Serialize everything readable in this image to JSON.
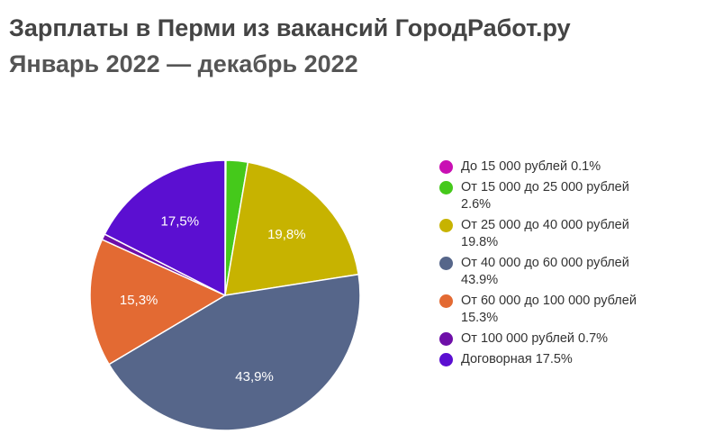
{
  "title": "Зарплаты в Перми из вакансий ГородРабот.ру",
  "subtitle": "Январь 2022 — декабрь 2022",
  "chart_data": {
    "type": "pie",
    "slices": [
      {
        "legend": "До 15 000 рублей 0.1%",
        "value": 0.1,
        "color": "#c90fb3",
        "label": ""
      },
      {
        "legend": "От 15 000 до 25 000 рублей 2.6%",
        "value": 2.6,
        "color": "#45c91b",
        "label": ""
      },
      {
        "legend": "От 25 000 до 40 000 рублей 19.8%",
        "value": 19.8,
        "color": "#c7b300",
        "label": "19,8%"
      },
      {
        "legend": "От 40 000 до 60 000 рублей 43.9%",
        "value": 43.9,
        "color": "#56668a",
        "label": "43,9%"
      },
      {
        "legend": "От 60 000 до 100 000 рублей 15.3%",
        "value": 15.3,
        "color": "#e36a33",
        "label": "15,3%"
      },
      {
        "legend": "От 100 000 рублей 0.7%",
        "value": 0.7,
        "color": "#6e0fa8",
        "label": ""
      },
      {
        "legend": "Договорная 17.5%",
        "value": 17.5,
        "color": "#5b0fd1",
        "label": "17,5%"
      }
    ],
    "legend_position": "right"
  }
}
